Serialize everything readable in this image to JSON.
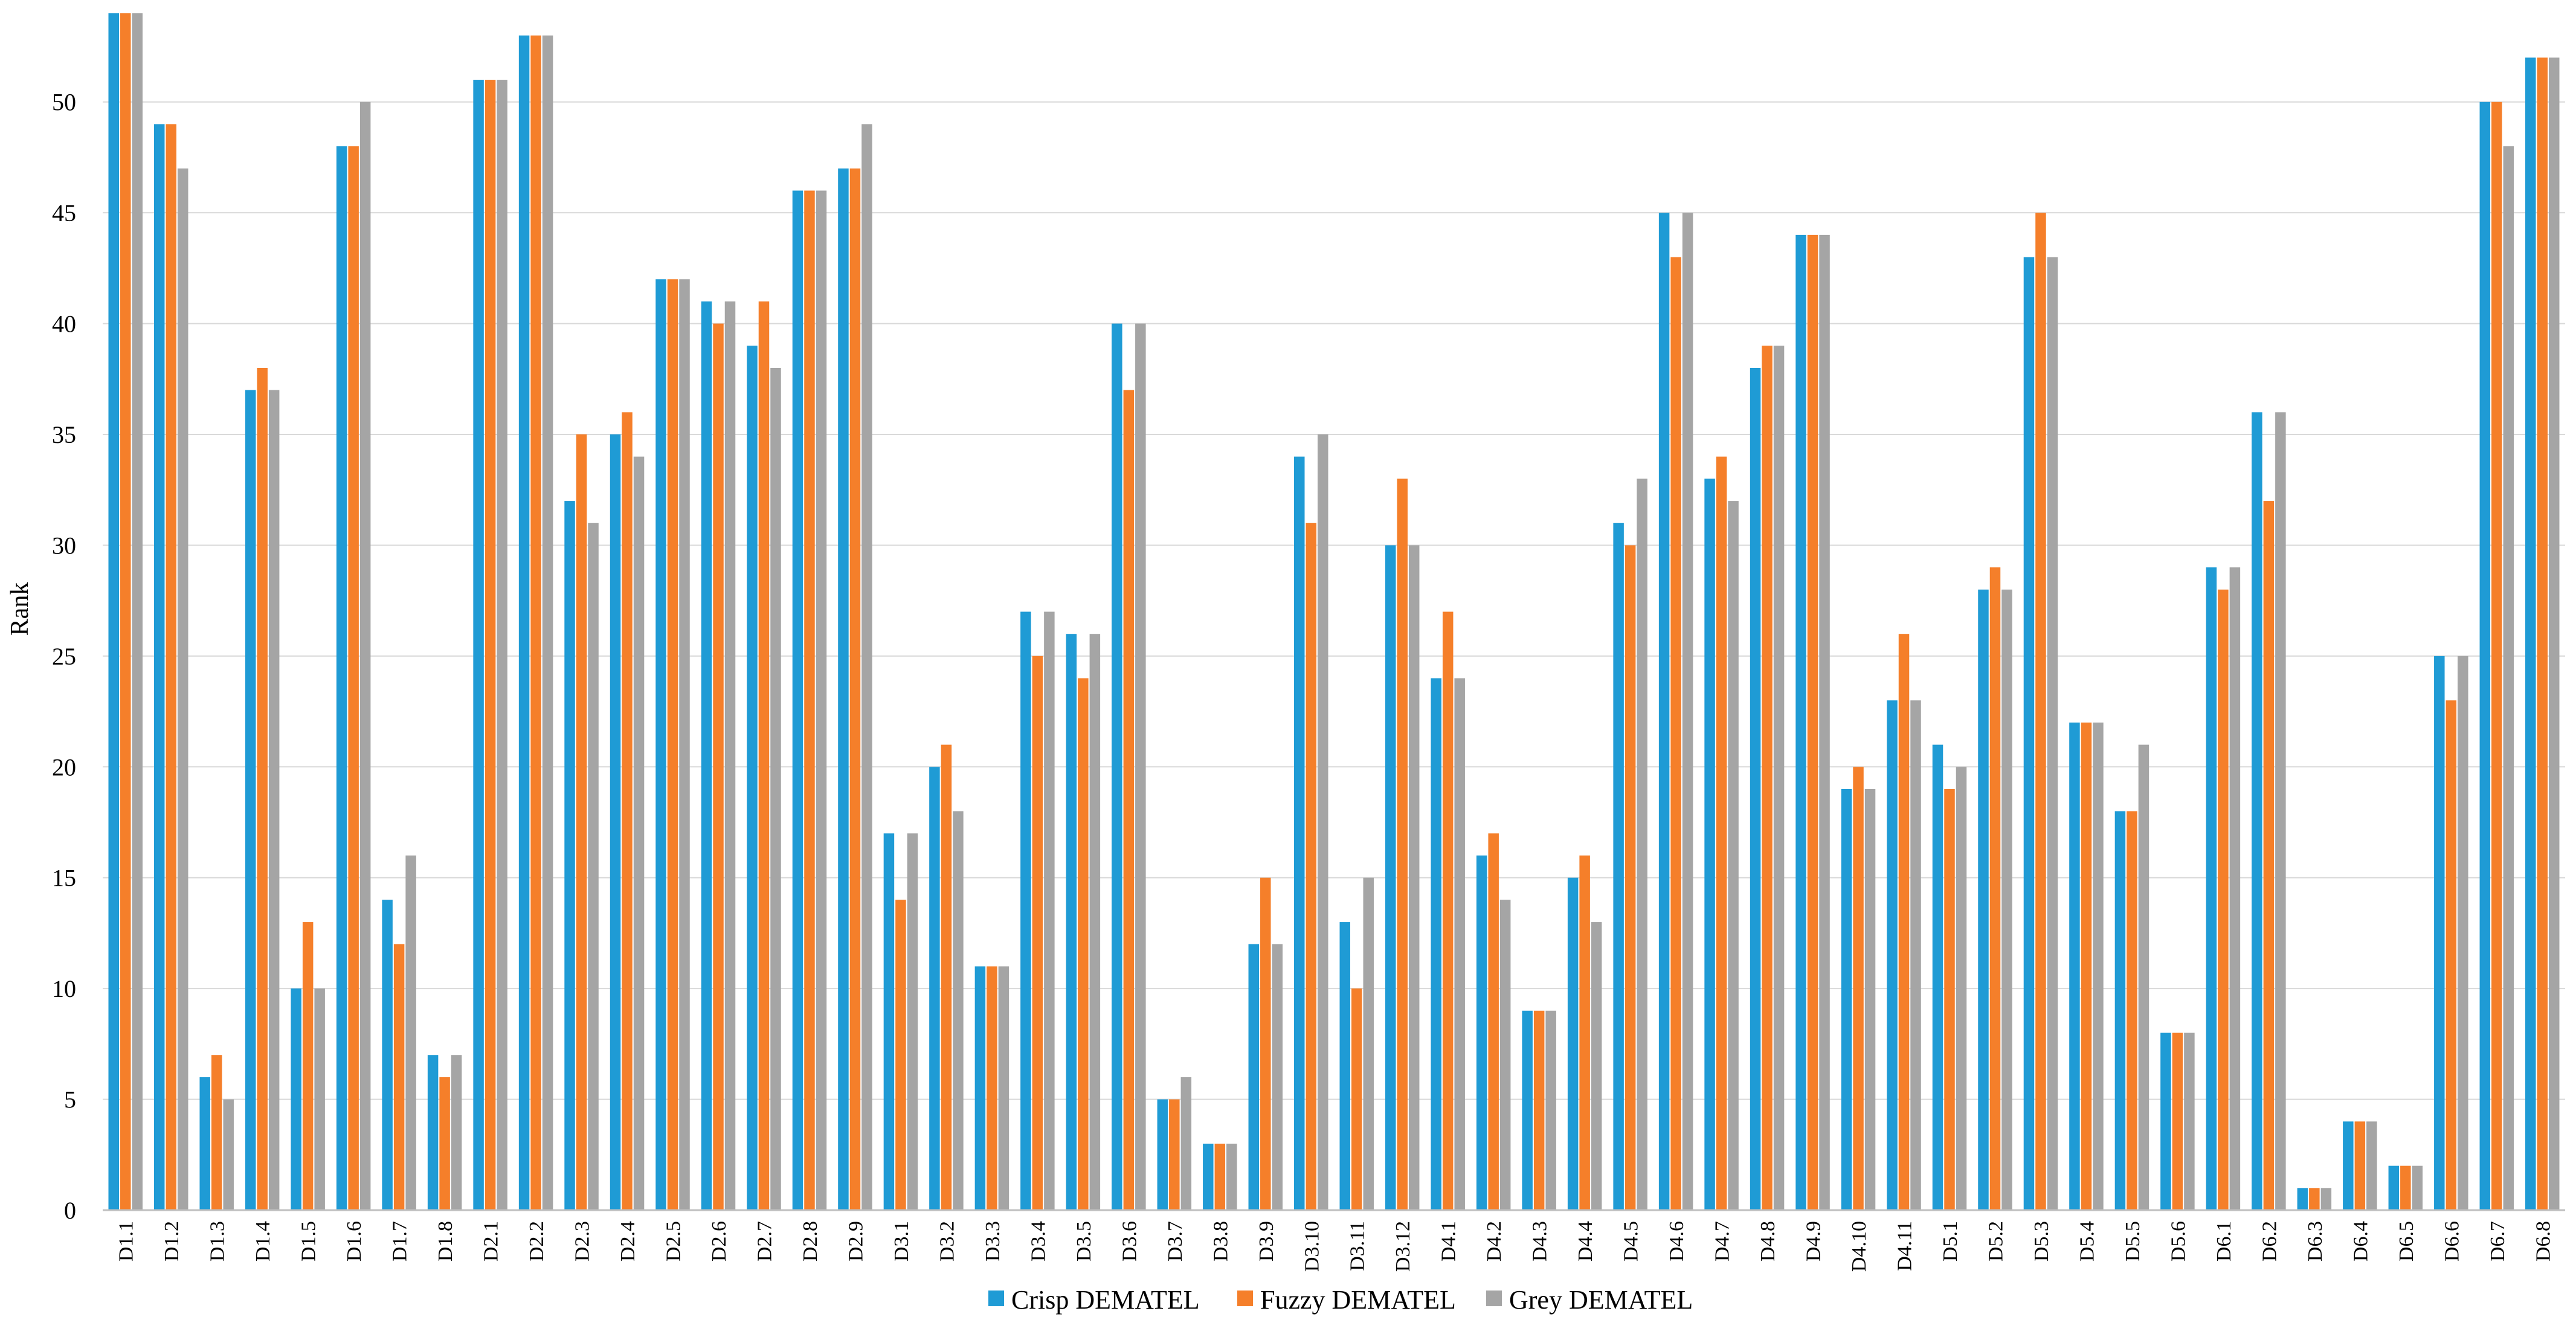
{
  "chart_data": {
    "type": "bar",
    "title": "",
    "xlabel": "",
    "ylabel": "Rank",
    "ylim": [
      0,
      54
    ],
    "yticks": [
      0,
      5,
      10,
      15,
      20,
      25,
      30,
      35,
      40,
      45,
      50
    ],
    "grid": true,
    "legend_position": "bottom",
    "categories": [
      "D1.1",
      "D1.2",
      "D1.3",
      "D1.4",
      "D1.5",
      "D1.6",
      "D1.7",
      "D1.8",
      "D2.1",
      "D2.2",
      "D2.3",
      "D2.4",
      "D2.5",
      "D2.6",
      "D2.7",
      "D2.8",
      "D2.9",
      "D3.1",
      "D3.2",
      "D3.3",
      "D3.4",
      "D3.5",
      "D3.6",
      "D3.7",
      "D3.8",
      "D3.9",
      "D3.10",
      "D3.11",
      "D3.12",
      "D4.1",
      "D4.2",
      "D4.3",
      "D4.4",
      "D4.5",
      "D4.6",
      "D4.7",
      "D4.8",
      "D4.9",
      "D4.10",
      "D4.11",
      "D5.1",
      "D5.2",
      "D5.3",
      "D5.4",
      "D5.5",
      "D5.6",
      "D6.1",
      "D6.2",
      "D6.3",
      "D6.4",
      "D6.5",
      "D6.6",
      "D6.7",
      "D6.8"
    ],
    "series": [
      {
        "name": "Crisp DEMATEL",
        "color": "#1f9bd5",
        "values": [
          54,
          49,
          6,
          37,
          10,
          48,
          14,
          7,
          51,
          53,
          32,
          35,
          42,
          41,
          39,
          46,
          47,
          17,
          20,
          11,
          27,
          26,
          40,
          5,
          3,
          12,
          34,
          13,
          30,
          24,
          16,
          9,
          15,
          31,
          45,
          33,
          38,
          44,
          19,
          23,
          21,
          28,
          43,
          22,
          18,
          8,
          29,
          36,
          1,
          4,
          2,
          25,
          50,
          52
        ]
      },
      {
        "name": "Fuzzy DEMATEL",
        "color": "#f57f2a",
        "values": [
          54,
          49,
          7,
          38,
          13,
          48,
          12,
          6,
          51,
          53,
          35,
          36,
          42,
          40,
          41,
          46,
          47,
          14,
          21,
          11,
          25,
          24,
          37,
          5,
          3,
          15,
          31,
          10,
          33,
          27,
          17,
          9,
          16,
          30,
          43,
          34,
          39,
          44,
          20,
          26,
          19,
          29,
          45,
          22,
          18,
          8,
          28,
          32,
          1,
          4,
          2,
          23,
          50,
          52
        ]
      },
      {
        "name": "Grey DEMATEL",
        "color": "#a5a5a5",
        "values": [
          54,
          47,
          5,
          37,
          10,
          50,
          16,
          7,
          51,
          53,
          31,
          34,
          42,
          41,
          38,
          46,
          49,
          17,
          18,
          11,
          27,
          26,
          40,
          6,
          3,
          12,
          35,
          15,
          30,
          24,
          14,
          9,
          13,
          33,
          45,
          32,
          39,
          44,
          19,
          23,
          20,
          28,
          43,
          22,
          21,
          8,
          29,
          36,
          1,
          4,
          2,
          25,
          48,
          52
        ]
      }
    ]
  }
}
